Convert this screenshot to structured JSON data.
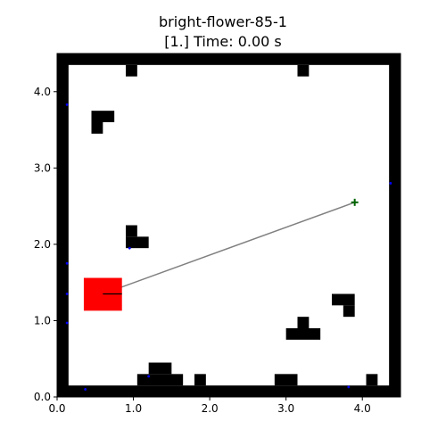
{
  "title": {
    "line1": "bright-flower-85-1",
    "line2": "[1.] Time: 0.00 s"
  },
  "colors": {
    "wall": "#000000",
    "agent": "#ff0000",
    "goal_marker": "#006400",
    "path_line": "#808080",
    "heading_line": "#000000",
    "sensor_dot": "#0000ff",
    "background": "#ffffff"
  },
  "chart_data": {
    "type": "scatter",
    "title": "bright-flower-85-1",
    "subtitle": "[1.] Time: 0.00 s",
    "xlabel": "",
    "ylabel": "",
    "xlim": [
      0.0,
      4.5
    ],
    "ylim": [
      0.0,
      4.5
    ],
    "x_ticks": [
      "0.0",
      "1.0",
      "2.0",
      "3.0",
      "4.0"
    ],
    "y_ticks": [
      "0.0",
      "1.0",
      "2.0",
      "3.0",
      "4.0"
    ],
    "grid": false,
    "cell_size": 0.15,
    "walls": [
      {
        "x": 0.0,
        "y": 4.35,
        "w": 4.5,
        "h": 0.15
      },
      {
        "x": 0.0,
        "y": 0.0,
        "w": 4.5,
        "h": 0.15
      },
      {
        "x": 0.0,
        "y": 0.0,
        "w": 0.15,
        "h": 4.5
      },
      {
        "x": 4.35,
        "y": 0.0,
        "w": 0.15,
        "h": 4.5
      },
      {
        "x": 0.9,
        "y": 4.2,
        "w": 0.15,
        "h": 0.15
      },
      {
        "x": 3.15,
        "y": 4.2,
        "w": 0.15,
        "h": 0.15
      },
      {
        "x": 0.45,
        "y": 3.6,
        "w": 0.3,
        "h": 0.15
      },
      {
        "x": 0.45,
        "y": 3.45,
        "w": 0.15,
        "h": 0.15
      },
      {
        "x": 0.9,
        "y": 2.1,
        "w": 0.15,
        "h": 0.15
      },
      {
        "x": 0.9,
        "y": 1.95,
        "w": 0.3,
        "h": 0.15
      },
      {
        "x": 3.6,
        "y": 1.2,
        "w": 0.3,
        "h": 0.15
      },
      {
        "x": 3.75,
        "y": 1.05,
        "w": 0.15,
        "h": 0.15
      },
      {
        "x": 3.15,
        "y": 0.9,
        "w": 0.15,
        "h": 0.15
      },
      {
        "x": 3.0,
        "y": 0.75,
        "w": 0.45,
        "h": 0.15
      },
      {
        "x": 1.2,
        "y": 0.3,
        "w": 0.3,
        "h": 0.15
      },
      {
        "x": 1.05,
        "y": 0.15,
        "w": 0.6,
        "h": 0.15
      },
      {
        "x": 1.8,
        "y": 0.15,
        "w": 0.15,
        "h": 0.15
      },
      {
        "x": 2.85,
        "y": 0.15,
        "w": 0.3,
        "h": 0.15
      },
      {
        "x": 4.05,
        "y": 0.15,
        "w": 0.15,
        "h": 0.15
      }
    ],
    "agent": {
      "x": 0.35,
      "y": 1.13,
      "w": 0.5,
      "h": 0.43
    },
    "agent_center": {
      "x": 0.6,
      "y": 1.35
    },
    "heading_end": {
      "x": 0.85,
      "y": 1.35
    },
    "goal": {
      "x": 3.9,
      "y": 2.55
    },
    "sensor_points": [
      {
        "x": 0.13,
        "y": 3.83
      },
      {
        "x": 0.13,
        "y": 1.75
      },
      {
        "x": 0.13,
        "y": 1.35
      },
      {
        "x": 0.13,
        "y": 0.97
      },
      {
        "x": 0.95,
        "y": 1.95
      },
      {
        "x": 1.2,
        "y": 0.27
      },
      {
        "x": 0.37,
        "y": 0.1
      },
      {
        "x": 3.82,
        "y": 0.13
      },
      {
        "x": 4.37,
        "y": 2.8
      }
    ]
  }
}
